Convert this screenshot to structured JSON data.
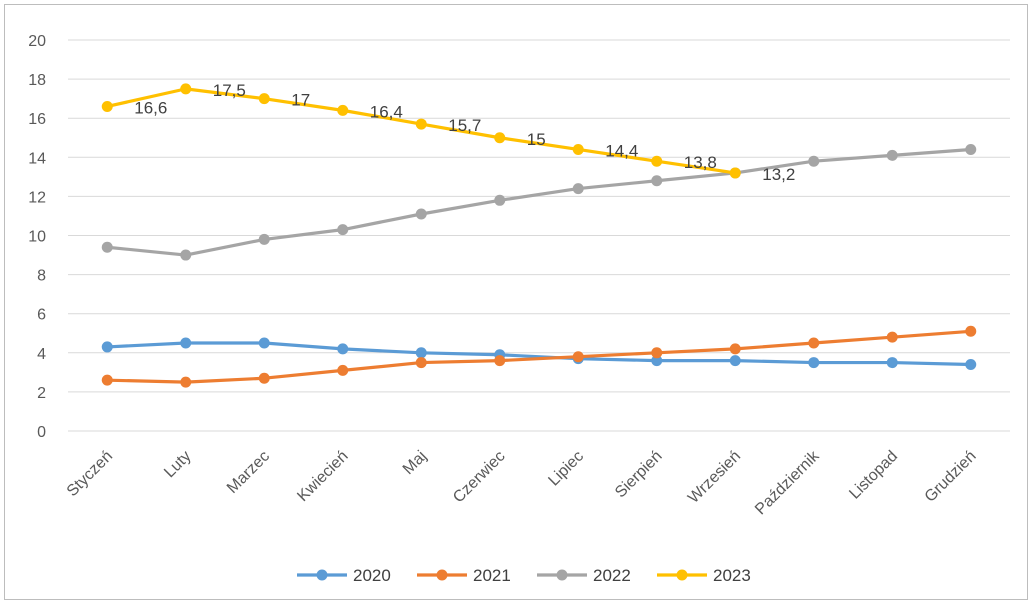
{
  "chart_data": {
    "type": "line",
    "title": "",
    "xlabel": "",
    "ylabel": "",
    "ylim": [
      0,
      20
    ],
    "yticks": [
      0,
      2,
      4,
      6,
      8,
      10,
      12,
      14,
      16,
      18,
      20
    ],
    "grid": true,
    "legend_position": "bottom",
    "categories": [
      "Styczeń",
      "Luty",
      "Marzec",
      "Kwiecień",
      "Maj",
      "Czerwiec",
      "Lipiec",
      "Sierpień",
      "Wrzesień",
      "Październik",
      "Listopad",
      "Grudzień"
    ],
    "series": [
      {
        "name": "2020",
        "color": "#5b9bd5",
        "values": [
          4.3,
          4.5,
          4.5,
          4.2,
          4.0,
          3.9,
          3.7,
          3.6,
          3.6,
          3.5,
          3.5,
          3.4
        ]
      },
      {
        "name": "2021",
        "color": "#ed7d31",
        "values": [
          2.6,
          2.5,
          2.7,
          3.1,
          3.5,
          3.6,
          3.8,
          4.0,
          4.2,
          4.5,
          4.8,
          5.1
        ]
      },
      {
        "name": "2022",
        "color": "#a5a5a5",
        "values": [
          9.4,
          9.0,
          9.8,
          10.3,
          11.1,
          11.8,
          12.4,
          12.8,
          13.2,
          13.8,
          14.1,
          14.4
        ]
      },
      {
        "name": "2023",
        "color": "#ffc000",
        "values": [
          16.6,
          17.5,
          17.0,
          16.4,
          15.7,
          15.0,
          14.4,
          13.8,
          13.2,
          null,
          null,
          null
        ],
        "data_labels": [
          "16,6",
          "17,5",
          "17",
          "16,4",
          "15,7",
          "15",
          "14,4",
          "13,8",
          "13,2"
        ]
      }
    ]
  }
}
